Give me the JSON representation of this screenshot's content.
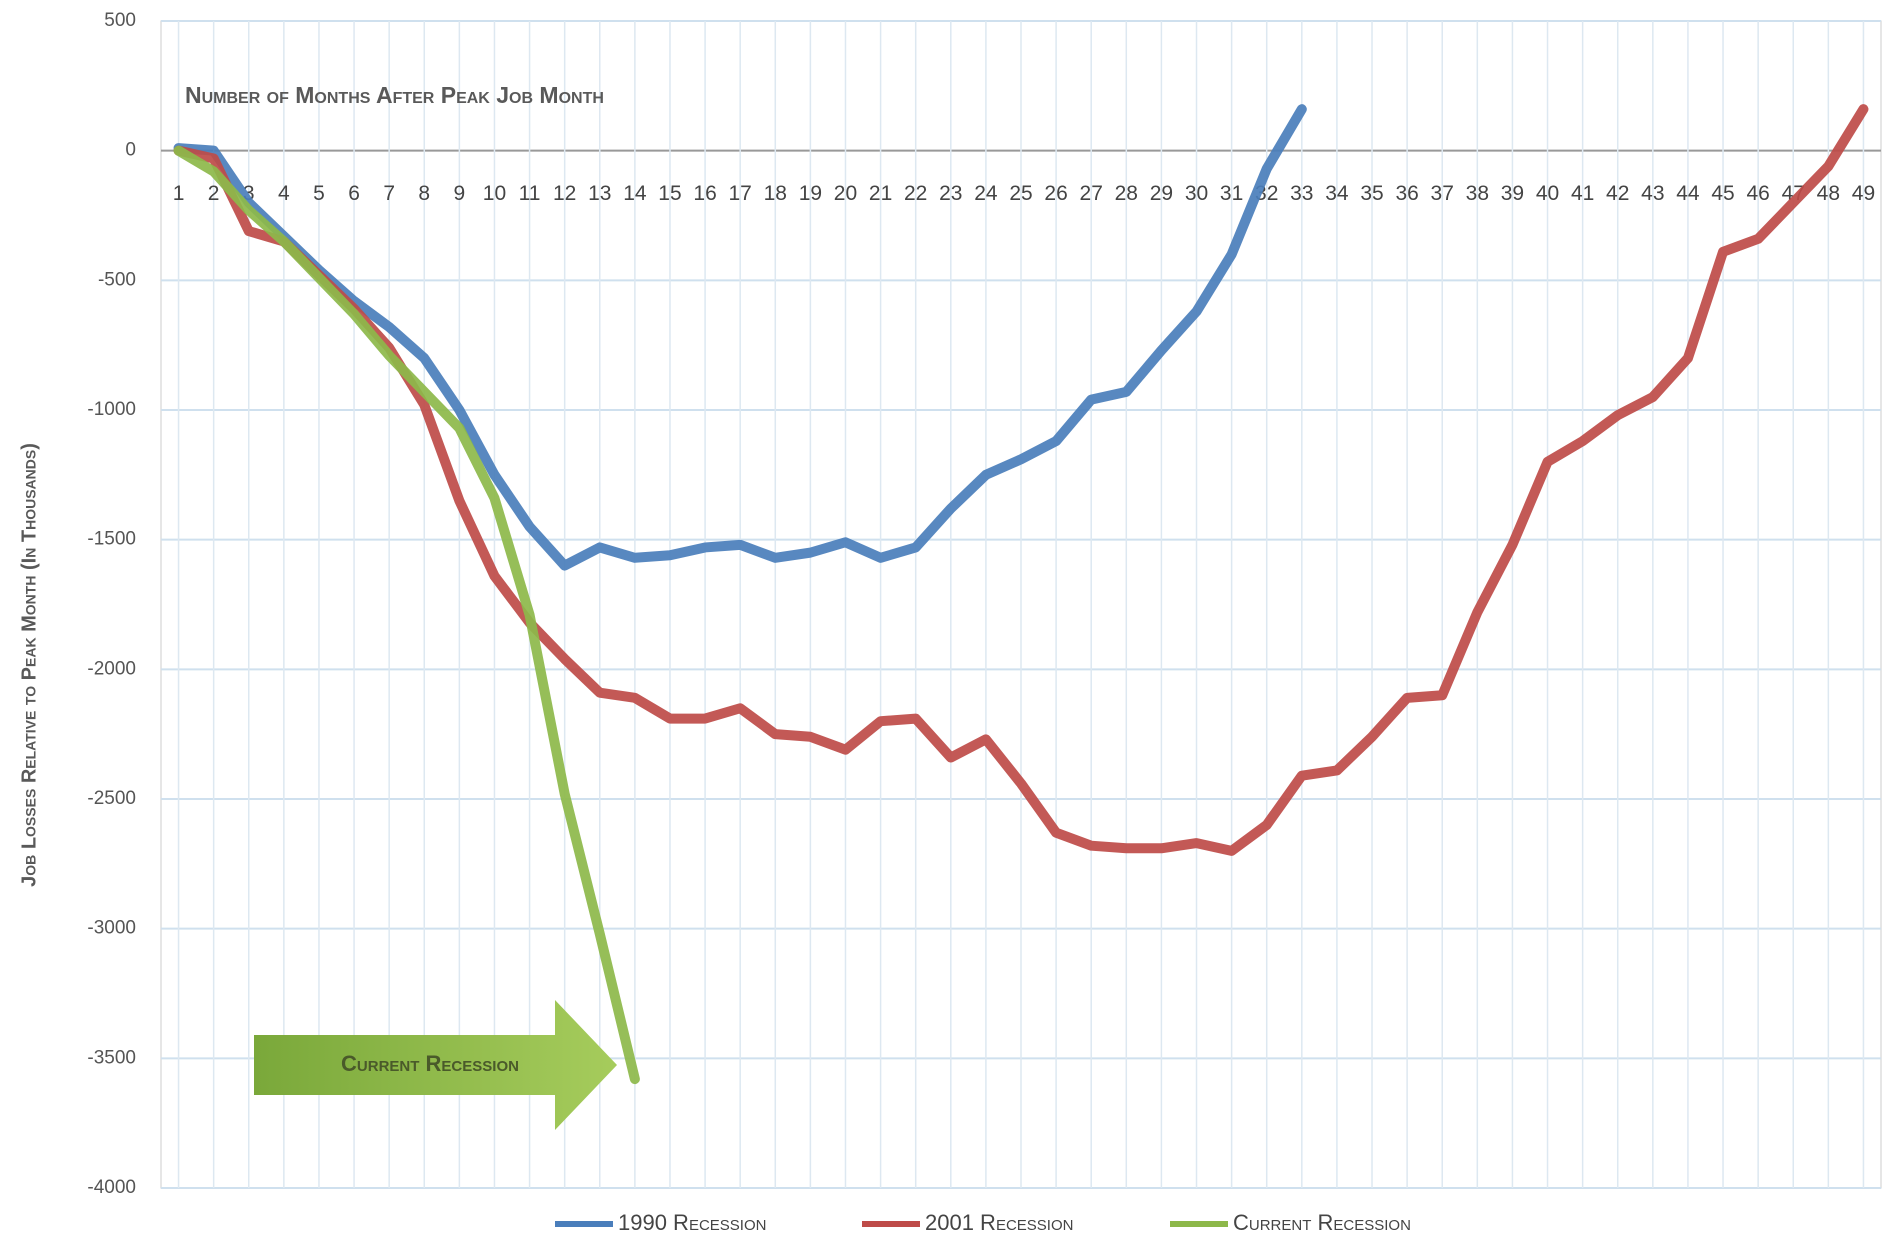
{
  "chart_data": {
    "type": "line",
    "x_axis_label": "Number of Months After Peak Job Month",
    "y_axis_label": "Job Losses Relative to Peak Month (In Thousands)",
    "annotation": "Current Recession",
    "x": [
      1,
      2,
      3,
      4,
      5,
      6,
      7,
      8,
      9,
      10,
      11,
      12,
      13,
      14,
      15,
      16,
      17,
      18,
      19,
      20,
      21,
      22,
      23,
      24,
      25,
      26,
      27,
      28,
      29,
      30,
      31,
      32,
      33,
      34,
      35,
      36,
      37,
      38,
      39,
      40,
      41,
      42,
      43,
      44,
      45,
      46,
      47,
      48,
      49
    ],
    "xlim": [
      0.5,
      49.5
    ],
    "ylim": [
      -4000,
      500
    ],
    "yticks": [
      500,
      0,
      -500,
      -1000,
      -1500,
      -2000,
      -2500,
      -3000,
      -3500,
      -4000
    ],
    "grid": true,
    "legend": "bottom",
    "series": [
      {
        "name": "1990 Recession",
        "color": "#4a7ebb",
        "values": [
          10,
          0,
          -200,
          -330,
          -460,
          -580,
          -680,
          -800,
          -1000,
          -1250,
          -1450,
          -1600,
          -1530,
          -1570,
          -1560,
          -1530,
          -1520,
          -1570,
          -1550,
          -1510,
          -1570,
          -1530,
          -1380,
          -1250,
          -1190,
          -1120,
          -960,
          -930,
          -770,
          -620,
          -400,
          -70,
          160,
          null,
          null,
          null,
          null,
          null,
          null,
          null,
          null,
          null,
          null,
          null,
          null,
          null,
          null,
          null,
          null
        ]
      },
      {
        "name": "2001 Recession",
        "color": "#be4b48",
        "values": [
          0,
          -30,
          -310,
          -350,
          -480,
          -610,
          -760,
          -980,
          -1350,
          -1640,
          -1820,
          -1960,
          -2090,
          -2110,
          -2190,
          -2190,
          -2150,
          -2250,
          -2260,
          -2310,
          -2200,
          -2190,
          -2340,
          -2270,
          -2440,
          -2630,
          -2680,
          -2690,
          -2690,
          -2670,
          -2700,
          -2600,
          -2410,
          -2390,
          -2260,
          -2110,
          -2100,
          -1780,
          -1520,
          -1200,
          -1120,
          -1020,
          -950,
          -800,
          -390,
          -340,
          -200,
          -60,
          160
        ]
      },
      {
        "name": "Current Recession",
        "color": "#8db84a",
        "values": [
          0,
          -80,
          -230,
          -350,
          -490,
          -630,
          -790,
          -930,
          -1070,
          -1340,
          -1790,
          -2480,
          -3020,
          -3580,
          null,
          null,
          null,
          null,
          null,
          null,
          null,
          null,
          null,
          null,
          null,
          null,
          null,
          null,
          null,
          null,
          null,
          null,
          null,
          null,
          null,
          null,
          null,
          null,
          null,
          null,
          null,
          null,
          null,
          null,
          null,
          null,
          null,
          null,
          null
        ]
      }
    ]
  }
}
